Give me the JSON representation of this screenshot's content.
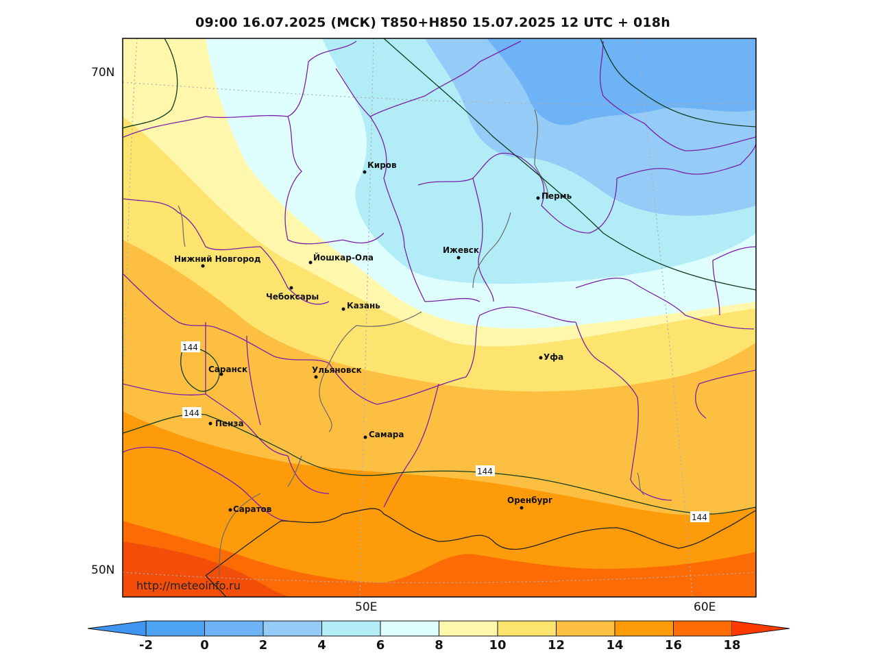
{
  "title": "09:00 16.07.2025 (МСК) T850+H850 15.07.2025 12 UTC + 018h",
  "watermark": "http://meteoinfo.ru",
  "lat_labels": {
    "top": "70N",
    "bottom": "50N"
  },
  "lon_labels": {
    "left": "50E",
    "right": "60E"
  },
  "cities": [
    {
      "id": "kirov",
      "name": "Киров"
    },
    {
      "id": "perm",
      "name": "Пермь"
    },
    {
      "id": "nizhny",
      "name": "Нижний Новгород"
    },
    {
      "id": "yoshkar",
      "name": "Йошкар-Ола"
    },
    {
      "id": "izhevsk",
      "name": "Ижевск"
    },
    {
      "id": "cheboksary",
      "name": "Чебоксары"
    },
    {
      "id": "kazan",
      "name": "Казань"
    },
    {
      "id": "ufa",
      "name": "Уфа"
    },
    {
      "id": "saransk",
      "name": "Саранск"
    },
    {
      "id": "ulyanovsk",
      "name": "Ульяновск"
    },
    {
      "id": "penza",
      "name": "Пенза"
    },
    {
      "id": "samara",
      "name": "Самара"
    },
    {
      "id": "orenburg",
      "name": "Оренбург"
    },
    {
      "id": "saratov",
      "name": "Саратов"
    }
  ],
  "contour_label": "144",
  "colorbar": {
    "ticks": [
      "-2",
      "0",
      "2",
      "4",
      "6",
      "8",
      "10",
      "12",
      "14",
      "16",
      "18"
    ],
    "colors": [
      "#3f96f0",
      "#4da2f1",
      "#6db3f5",
      "#95cbf7",
      "#b1ecf7",
      "#dffefe",
      "#fff7ac",
      "#fde46f",
      "#fdbf42",
      "#fd9b0a",
      "#fd6b05",
      "#fd3a00"
    ]
  }
}
